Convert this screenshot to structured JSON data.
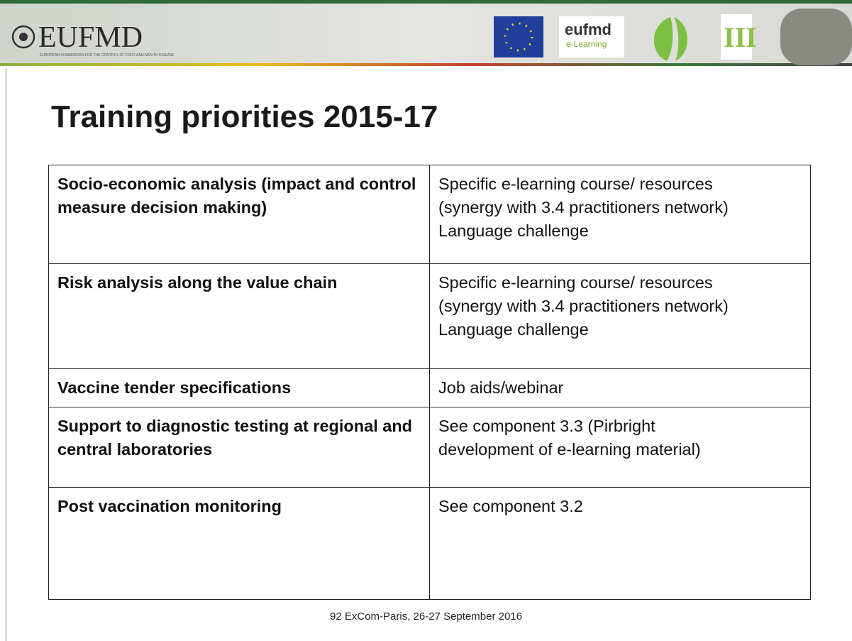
{
  "header": {
    "logo": "EUFMD",
    "logo_subtitle": "EUROPEAN COMMISSION FOR THE CONTROL OF FOOT-AND-MOUTH DISEASE",
    "elearning_logo": "eufmd",
    "elearning_sub": "e-Learning"
  },
  "title": "Training priorities 2015-17",
  "table": {
    "rows": [
      [
        "Socio-economic analysis (impact and control measure decision making)",
        [
          "Specific e-learning course/ resources",
          "(synergy with 3.4 practitioners network)",
          "Language challenge"
        ]
      ],
      [
        "Risk analysis along the value chain",
        [
          "Specific e-learning course/ resources",
          "(synergy with 3.4 practitioners network)",
          "Language challenge"
        ]
      ],
      [
        "Vaccine tender specifications",
        [
          "Job aids/webinar"
        ]
      ],
      [
        "Support to diagnostic testing at regional and central laboratories",
        [
          "See component 3.3 (Pirbright",
          "development of e-learning material)"
        ]
      ],
      [
        "Post vaccination monitoring",
        [
          "See component 3.2"
        ]
      ]
    ]
  },
  "footer": "92 ExCom-Paris, 26-27 September 2016"
}
